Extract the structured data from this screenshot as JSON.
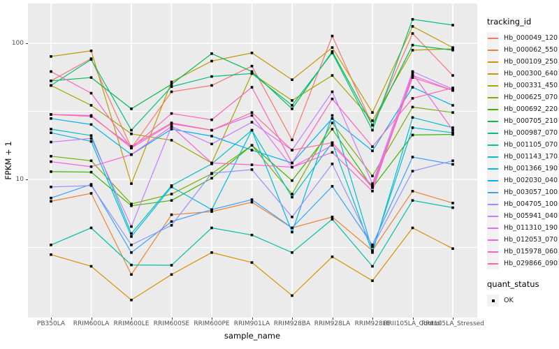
{
  "chart_data": {
    "type": "line",
    "title": "",
    "xlabel": "sample_name",
    "ylabel": "FPKM + 1",
    "y_scale": "log10",
    "ylim": [
      1,
      200
    ],
    "yticks": [
      {
        "value": 100,
        "label": "100"
      },
      {
        "value": 10,
        "label": "10"
      }
    ],
    "y_minor_gridlines": [
      3.162,
      31.623
    ],
    "grid": true,
    "legend_title": "tracking_id",
    "legend_position": "right",
    "marker": "black-square",
    "quant_legend": {
      "title": "quant_status",
      "entries": [
        {
          "label": "OK",
          "symbol": "black-square"
        }
      ]
    },
    "categories": [
      "PB350LA",
      "RRIM600LA",
      "RRIM600LE",
      "RRIM600SE",
      "RRIM600PE",
      "RRIM901LA",
      "RRIM928BA",
      "RRIM928LA",
      "RRIM928LE",
      "RRII105LA_Control",
      "RRII105LA_Stressed"
    ],
    "series": [
      {
        "name": "Hb_000049_120",
        "color": "#F8766D",
        "values": [
          53,
          77,
          17,
          44,
          49,
          68,
          19.5,
          113,
          25,
          118,
          58
        ]
      },
      {
        "name": "Hb_000062_550",
        "color": "#EA8331",
        "values": [
          6.9,
          7.9,
          2.0,
          5.5,
          5.8,
          6.8,
          4.4,
          5.3,
          3.0,
          8.2,
          6.7
        ]
      },
      {
        "name": "Hb_000109_250",
        "color": "#D89000",
        "values": [
          2.8,
          2.3,
          1.3,
          2.0,
          2.9,
          2.45,
          1.4,
          2.7,
          1.8,
          4.4,
          3.1
        ]
      },
      {
        "name": "Hb_000300_640",
        "color": "#C09B00",
        "values": [
          80,
          88,
          9.3,
          52,
          74,
          85,
          54,
          93,
          31,
          133,
          93
        ]
      },
      {
        "name": "Hb_000331_450",
        "color": "#A3A500",
        "values": [
          49,
          35,
          21.6,
          19.4,
          13.2,
          60,
          38,
          58,
          27,
          89,
          91
        ]
      },
      {
        "name": "Hb_000625_070",
        "color": "#7CAE00",
        "values": [
          14.8,
          13.7,
          6.6,
          7.8,
          11,
          17.8,
          7.8,
          26,
          10.6,
          34,
          31
        ]
      },
      {
        "name": "Hb_000692_220",
        "color": "#39B600",
        "values": [
          11.4,
          11.3,
          6.4,
          7.0,
          10.2,
          17.8,
          9.8,
          23.4,
          8.7,
          21.2,
          21.4
        ]
      },
      {
        "name": "Hb_000705_210",
        "color": "#00BB4E",
        "values": [
          53,
          56,
          33,
          50,
          84,
          62,
          33,
          87,
          25,
          97,
          89
        ]
      },
      {
        "name": "Hb_000987_070",
        "color": "#00BF7D",
        "values": [
          49,
          76,
          23,
          48,
          57,
          60,
          35,
          85,
          23,
          150,
          136
        ]
      },
      {
        "name": "Hb_001105_070",
        "color": "#00C1A3",
        "values": [
          3.3,
          4.4,
          2.35,
          2.34,
          4.4,
          3.9,
          2.9,
          5.1,
          2.3,
          7.0,
          6.2
        ]
      },
      {
        "name": "Hb_001143_170",
        "color": "#00BFC4",
        "values": [
          23.4,
          21,
          4.0,
          9.0,
          13,
          23,
          7.4,
          18.6,
          2.9,
          28.5,
          24
        ]
      },
      {
        "name": "Hb_001366_190",
        "color": "#00BAE0",
        "values": [
          22,
          19,
          3.8,
          8.8,
          6.0,
          23,
          4.1,
          29.5,
          3.0,
          24,
          22
        ]
      },
      {
        "name": "Hb_002030_040",
        "color": "#00B0F6",
        "values": [
          28,
          25.3,
          15.2,
          23.4,
          20.8,
          16.4,
          13.2,
          28,
          16.2,
          47.5,
          35
        ]
      },
      {
        "name": "Hb_003057_100",
        "color": "#35A2FF",
        "values": [
          7.3,
          9.2,
          2.9,
          4.9,
          6.0,
          7.1,
          4.4,
          8.9,
          3.3,
          14.6,
          12.9
        ]
      },
      {
        "name": "Hb_004705_100",
        "color": "#9590FF",
        "values": [
          8.8,
          9.0,
          3.3,
          4.6,
          11.1,
          11.8,
          5.3,
          13,
          3.2,
          11.5,
          13.7
        ]
      },
      {
        "name": "Hb_005941_040",
        "color": "#C77CFF",
        "values": [
          18.8,
          20,
          4.5,
          24.5,
          18.2,
          26.3,
          16.4,
          44,
          9.3,
          62,
          46
        ]
      },
      {
        "name": "Hb_011310_190",
        "color": "#E76BF3",
        "values": [
          30,
          29.5,
          17,
          25.6,
          23,
          29.5,
          12.3,
          17.8,
          9.0,
          58,
          45
        ]
      },
      {
        "name": "Hb_012053_070",
        "color": "#FA62DB",
        "values": [
          13.5,
          12.4,
          15.2,
          24.5,
          13.2,
          12.8,
          12.3,
          15.8,
          8.2,
          60,
          23
        ]
      },
      {
        "name": "Hb_015978_060",
        "color": "#FF62BC",
        "values": [
          62,
          43,
          17,
          30.5,
          27.4,
          47.5,
          13.2,
          39,
          17.4,
          39.4,
          47
        ]
      },
      {
        "name": "Hb_029866_090",
        "color": "#FF6A98",
        "values": [
          30,
          29,
          17.5,
          26,
          23,
          31,
          16.4,
          18.6,
          8.7,
          56,
          45
        ]
      }
    ]
  }
}
